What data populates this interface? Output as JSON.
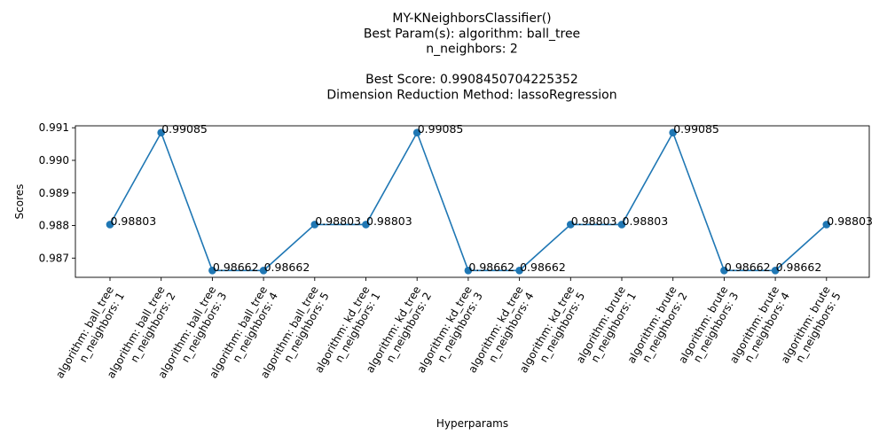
{
  "chart_data": {
    "type": "line",
    "title_lines": [
      "MY-KNeighborsClassifier()",
      "Best Param(s): algorithm: ball_tree",
      "n_neighbors: 2",
      "",
      "Best Score: 0.9908450704225352",
      "Dimension Reduction Method: lassoRegression"
    ],
    "xlabel": "Hyperparams",
    "ylabel": "Scores",
    "ylim": [
      0.98641,
      0.99106
    ],
    "yticks": [
      {
        "value": 0.987,
        "label": "0.987"
      },
      {
        "value": 0.988,
        "label": "0.988"
      },
      {
        "value": 0.989,
        "label": "0.989"
      },
      {
        "value": 0.99,
        "label": "0.990"
      },
      {
        "value": 0.991,
        "label": "0.991"
      }
    ],
    "grid": false,
    "legend": "none",
    "line_color": "#1f77b4",
    "categories": [
      [
        "algorithm: ball_tree",
        "n_neighbors: 1"
      ],
      [
        "algorithm: ball_tree",
        "n_neighbors: 2"
      ],
      [
        "algorithm: ball_tree",
        "n_neighbors: 3"
      ],
      [
        "algorithm: ball_tree",
        "n_neighbors: 4"
      ],
      [
        "algorithm: ball_tree",
        "n_neighbors: 5"
      ],
      [
        "algorithm: kd_tree",
        "n_neighbors: 1"
      ],
      [
        "algorithm: kd_tree",
        "n_neighbors: 2"
      ],
      [
        "algorithm: kd_tree",
        "n_neighbors: 3"
      ],
      [
        "algorithm: kd_tree",
        "n_neighbors: 4"
      ],
      [
        "algorithm: kd_tree",
        "n_neighbors: 5"
      ],
      [
        "algorithm: brute",
        "n_neighbors: 1"
      ],
      [
        "algorithm: brute",
        "n_neighbors: 2"
      ],
      [
        "algorithm: brute",
        "n_neighbors: 3"
      ],
      [
        "algorithm: brute",
        "n_neighbors: 4"
      ],
      [
        "algorithm: brute",
        "n_neighbors: 5"
      ]
    ],
    "values": [
      0.98803,
      0.99085,
      0.98662,
      0.98662,
      0.98803,
      0.98803,
      0.99085,
      0.98662,
      0.98662,
      0.98803,
      0.98803,
      0.99085,
      0.98662,
      0.98662,
      0.98803
    ],
    "data_labels": [
      "0.98803",
      "0.99085",
      "0.98662",
      "0.98662",
      "0.98803",
      "0.98803",
      "0.99085",
      "0.98662",
      "0.98662",
      "0.98803",
      "0.98803",
      "0.99085",
      "0.98662",
      "0.98662",
      "0.98803"
    ]
  }
}
